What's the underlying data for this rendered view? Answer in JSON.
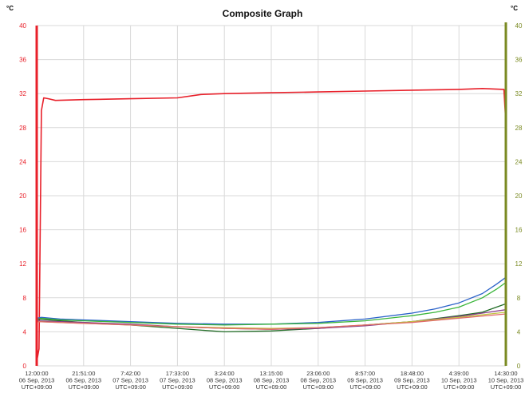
{
  "chart_data": {
    "type": "line",
    "title": "Composite Graph",
    "y_left": {
      "unit": "°C",
      "ylim": [
        0,
        40
      ],
      "ticks": [
        0,
        4,
        8,
        12,
        16,
        20,
        24,
        28,
        32,
        36,
        40
      ],
      "color": "#e8202a"
    },
    "y_right": {
      "unit": "°C",
      "ylim": [
        0,
        40
      ],
      "ticks": [
        0,
        4,
        8,
        12,
        16,
        20,
        24,
        28,
        32,
        36,
        40
      ],
      "color": "#7a8a22"
    },
    "x_ticks": [
      {
        "time": "12:00:00",
        "date": "06 Sep, 2013",
        "tz": "UTC+09:00"
      },
      {
        "time": "21:51:00",
        "date": "06 Sep, 2013",
        "tz": "UTC+09:00"
      },
      {
        "time": "7:42:00",
        "date": "07 Sep, 2013",
        "tz": "UTC+09:00"
      },
      {
        "time": "17:33:00",
        "date": "07 Sep, 2013",
        "tz": "UTC+09:00"
      },
      {
        "time": "3:24:00",
        "date": "08 Sep, 2013",
        "tz": "UTC+09:00"
      },
      {
        "time": "13:15:00",
        "date": "08 Sep, 2013",
        "tz": "UTC+09:00"
      },
      {
        "time": "23:06:00",
        "date": "08 Sep, 2013",
        "tz": "UTC+09:00"
      },
      {
        "time": "8:57:00",
        "date": "09 Sep, 2013",
        "tz": "UTC+09:00"
      },
      {
        "time": "18:48:00",
        "date": "09 Sep, 2013",
        "tz": "UTC+09:00"
      },
      {
        "time": "4:39:00",
        "date": "10 Sep, 2013",
        "tz": "UTC+09:00"
      },
      {
        "time": "14:30:00",
        "date": "10 Sep, 2013",
        "tz": "UTC+09:00"
      }
    ],
    "grid": true,
    "series": [
      {
        "color": "#e8202a",
        "points": [
          [
            0,
            0.5
          ],
          [
            0.05,
            2
          ],
          [
            0.1,
            30
          ],
          [
            0.15,
            31.5
          ],
          [
            0.25,
            31.4
          ],
          [
            0.4,
            31.2
          ],
          [
            1,
            31.3
          ],
          [
            2,
            31.4
          ],
          [
            3,
            31.5
          ],
          [
            3.5,
            31.9
          ],
          [
            4,
            32.0
          ],
          [
            5,
            32.1
          ],
          [
            6,
            32.2
          ],
          [
            7,
            32.3
          ],
          [
            8,
            32.4
          ],
          [
            9,
            32.5
          ],
          [
            9.5,
            32.6
          ],
          [
            9.96,
            32.5
          ],
          [
            10,
            28.5
          ]
        ]
      },
      {
        "color": "#2a62c9",
        "points": [
          [
            0,
            5.6
          ],
          [
            0.1,
            5.7
          ],
          [
            0.5,
            5.5
          ],
          [
            1,
            5.4
          ],
          [
            2,
            5.2
          ],
          [
            3,
            5.0
          ],
          [
            4,
            4.9
          ],
          [
            5,
            4.9
          ],
          [
            6,
            5.1
          ],
          [
            7,
            5.5
          ],
          [
            8,
            6.2
          ],
          [
            8.5,
            6.7
          ],
          [
            9,
            7.4
          ],
          [
            9.5,
            8.5
          ],
          [
            9.8,
            9.6
          ],
          [
            10,
            10.4
          ]
        ]
      },
      {
        "color": "#3ab53a",
        "points": [
          [
            0,
            5.4
          ],
          [
            0.1,
            5.6
          ],
          [
            0.5,
            5.4
          ],
          [
            1,
            5.3
          ],
          [
            2,
            5.1
          ],
          [
            3,
            4.9
          ],
          [
            4,
            4.8
          ],
          [
            5,
            4.9
          ],
          [
            6,
            5.0
          ],
          [
            7,
            5.3
          ],
          [
            8,
            5.9
          ],
          [
            8.5,
            6.3
          ],
          [
            9,
            6.9
          ],
          [
            9.5,
            8.0
          ],
          [
            9.8,
            9.0
          ],
          [
            10,
            9.8
          ]
        ]
      },
      {
        "color": "#1f6b24",
        "points": [
          [
            0,
            5.5
          ],
          [
            0.5,
            5.3
          ],
          [
            1,
            5.1
          ],
          [
            2,
            4.8
          ],
          [
            3,
            4.4
          ],
          [
            4,
            4.0
          ],
          [
            5,
            4.1
          ],
          [
            6,
            4.4
          ],
          [
            7,
            4.8
          ],
          [
            8,
            5.2
          ],
          [
            9,
            5.9
          ],
          [
            9.5,
            6.3
          ],
          [
            9.8,
            6.9
          ],
          [
            10,
            7.3
          ]
        ]
      },
      {
        "color": "#8a3e8a",
        "points": [
          [
            0,
            5.3
          ],
          [
            1,
            5.1
          ],
          [
            2,
            4.9
          ],
          [
            3,
            4.6
          ],
          [
            4,
            4.4
          ],
          [
            5,
            4.3
          ],
          [
            6,
            4.4
          ],
          [
            7,
            4.7
          ],
          [
            8,
            5.2
          ],
          [
            9,
            5.8
          ],
          [
            9.5,
            6.2
          ],
          [
            10,
            6.6
          ]
        ]
      },
      {
        "color": "#c2c240",
        "points": [
          [
            0,
            5.2
          ],
          [
            1,
            5.0
          ],
          [
            2,
            4.8
          ],
          [
            3,
            4.6
          ],
          [
            4,
            4.5
          ],
          [
            5,
            4.4
          ],
          [
            6,
            4.5
          ],
          [
            7,
            4.8
          ],
          [
            8,
            5.2
          ],
          [
            9,
            5.7
          ],
          [
            10,
            6.3
          ]
        ]
      },
      {
        "color": "#e06a6a",
        "points": [
          [
            0,
            5.2
          ],
          [
            1,
            5.0
          ],
          [
            2,
            4.8
          ],
          [
            3,
            4.6
          ],
          [
            4,
            4.4
          ],
          [
            5,
            4.3
          ],
          [
            6,
            4.5
          ],
          [
            7,
            4.8
          ],
          [
            8,
            5.1
          ],
          [
            9,
            5.6
          ],
          [
            10,
            6.1
          ]
        ]
      }
    ]
  }
}
